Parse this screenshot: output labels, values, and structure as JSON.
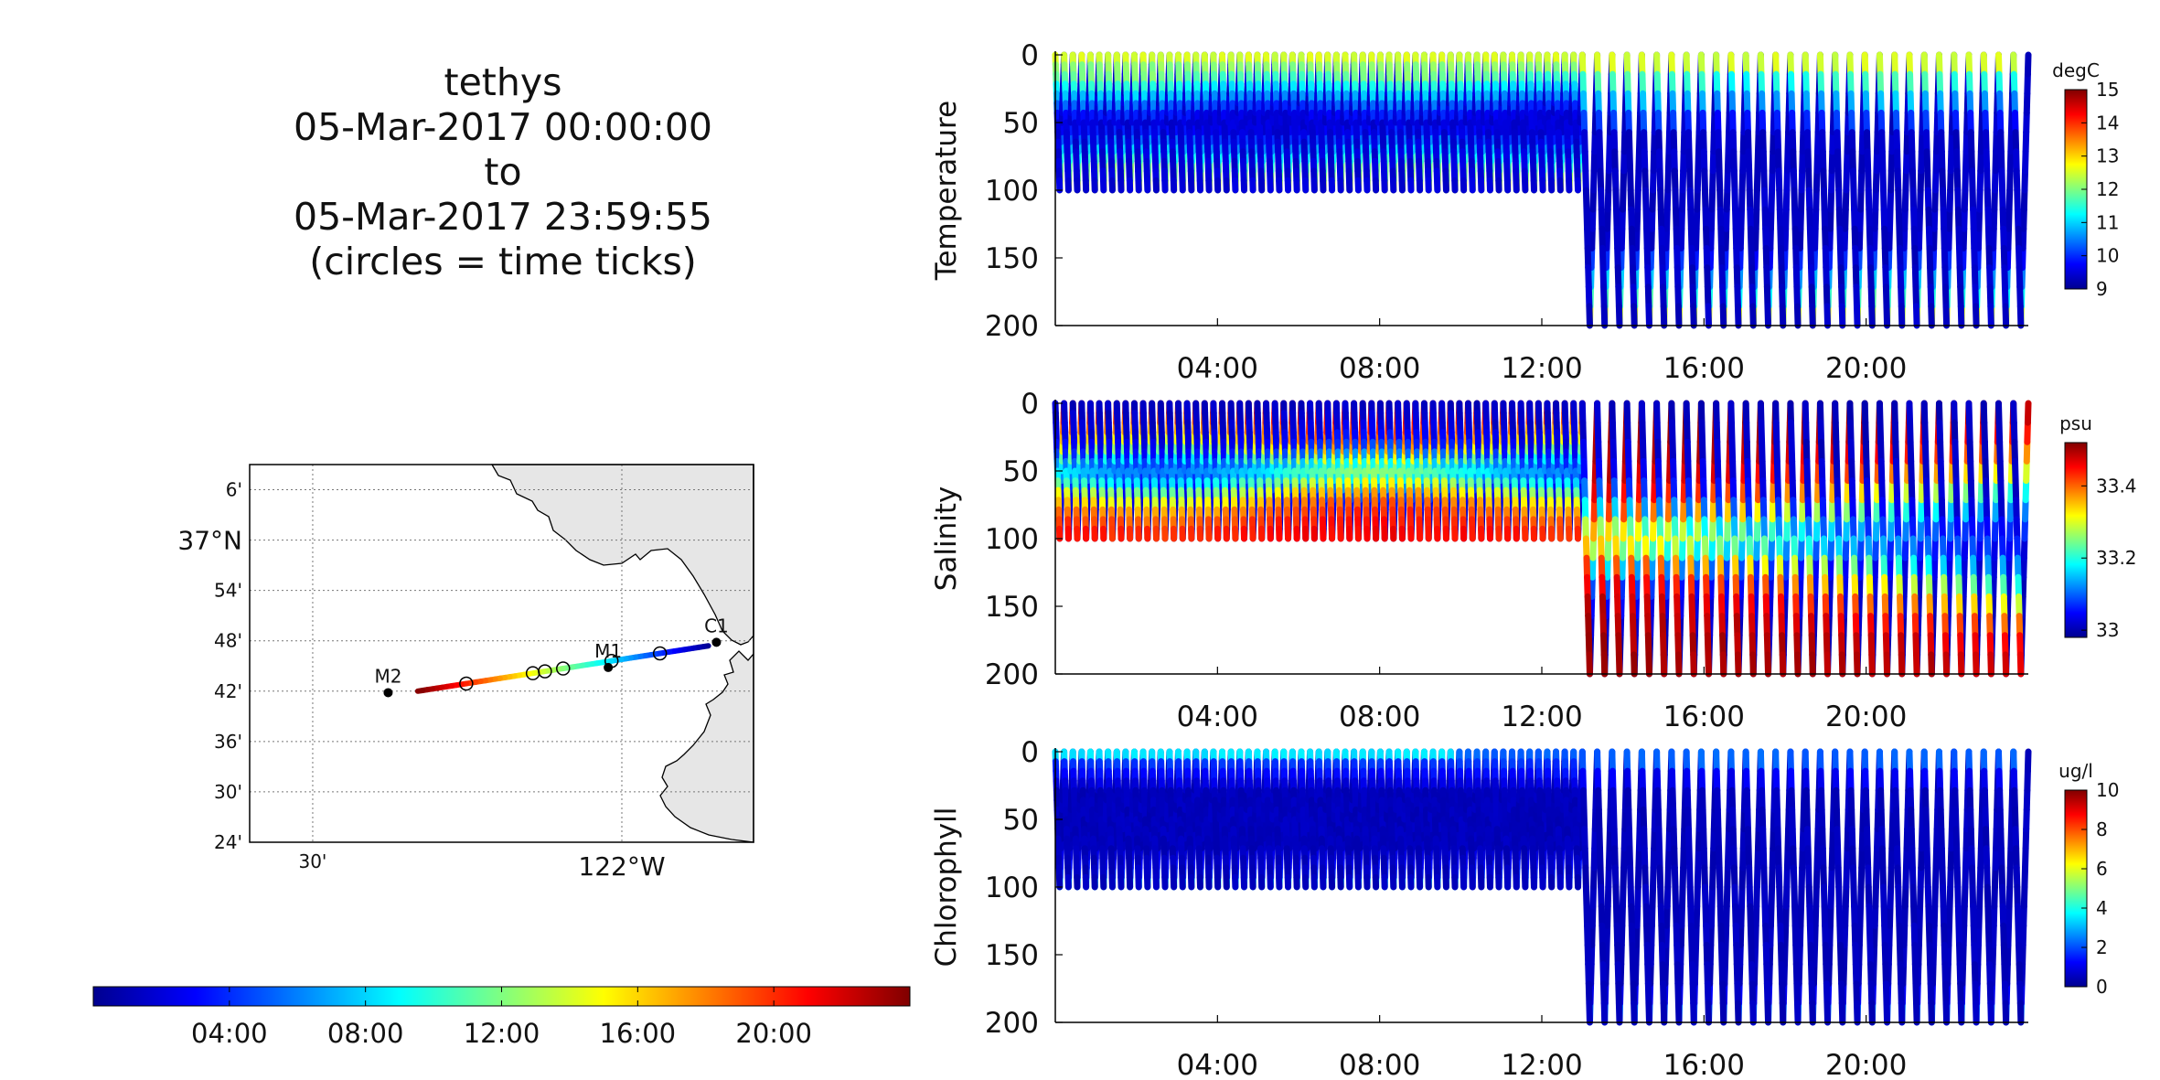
{
  "title": {
    "lines": [
      "tethys",
      "05-Mar-2017 00:00:00",
      "to",
      "05-Mar-2017 23:59:55",
      "(circles = time ticks)"
    ]
  },
  "colors": {
    "jet": [
      "#00008f",
      "#0000ff",
      "#0080ff",
      "#00ffff",
      "#80ff80",
      "#ffff00",
      "#ff8000",
      "#ff0000",
      "#800000"
    ],
    "land": "#e6e6e6",
    "axis": "#000000"
  },
  "chart_data": [
    {
      "type": "map",
      "lon_labels": [
        "30'",
        "122°W"
      ],
      "lat_labels": [
        "6'",
        "37°N",
        "54'",
        "48'",
        "42'",
        "36'",
        "30'",
        "24'"
      ],
      "stations": [
        {
          "name": "C1",
          "lon": -121.847,
          "lat": 36.797
        },
        {
          "name": "M1",
          "lon": -122.022,
          "lat": 36.747
        },
        {
          "name": "M2",
          "lon": -122.378,
          "lat": 36.697
        }
      ],
      "track": {
        "start": {
          "lon": -121.86,
          "lat": 36.79
        },
        "end": {
          "lon": -122.33,
          "lat": 36.7
        }
      },
      "time_tick_circles_hours": [
        4,
        8,
        12,
        13.5,
        14.5,
        20
      ],
      "grid": true
    },
    {
      "type": "colorbar",
      "orientation": "horizontal",
      "ticks": [
        "04:00",
        "08:00",
        "12:00",
        "16:00",
        "20:00"
      ],
      "range_hours": [
        0,
        24
      ]
    },
    {
      "type": "scatter",
      "ylabel": "Temperature",
      "units": "degC",
      "colorbar_ticks": [
        "9",
        "10",
        "11",
        "12",
        "13",
        "14",
        "15"
      ],
      "clim": [
        9,
        15
      ],
      "ylim": [
        200,
        0
      ],
      "yticks": [
        "0",
        "50",
        "100",
        "150",
        "200"
      ],
      "xticks": [
        "04:00",
        "08:00",
        "12:00",
        "16:00",
        "20:00"
      ],
      "profiles": [
        {
          "hours": [
            0,
            13
          ],
          "max_depth": 100,
          "period_min": 13
        },
        {
          "hours": [
            13,
            24
          ],
          "max_depth": 200,
          "period_min": 22
        }
      ],
      "surface_value": 12.7,
      "deep_value": 9.3
    },
    {
      "type": "scatter",
      "ylabel": "Salinity",
      "units": "psu",
      "colorbar_ticks": [
        "33",
        "33.2",
        "33.4"
      ],
      "clim": [
        32.98,
        33.52
      ],
      "ylim": [
        200,
        0
      ],
      "yticks": [
        "0",
        "50",
        "100",
        "150",
        "200"
      ],
      "xticks": [
        "04:00",
        "08:00",
        "12:00",
        "16:00",
        "20:00"
      ],
      "profiles": [
        {
          "hours": [
            0,
            13
          ],
          "max_depth": 100,
          "period_min": 13
        },
        {
          "hours": [
            13,
            24
          ],
          "max_depth": 200,
          "period_min": 22
        }
      ],
      "surface_value": 33.0,
      "deep_value": 33.5
    },
    {
      "type": "scatter",
      "ylabel": "Chlorophyll",
      "units": "ug/l",
      "colorbar_ticks": [
        "0",
        "2",
        "4",
        "6",
        "8",
        "10"
      ],
      "clim": [
        0,
        10
      ],
      "ylim": [
        200,
        0
      ],
      "yticks": [
        "0",
        "50",
        "100",
        "150",
        "200"
      ],
      "xticks": [
        "04:00",
        "08:00",
        "12:00",
        "16:00",
        "20:00"
      ],
      "profiles": [
        {
          "hours": [
            0,
            13
          ],
          "max_depth": 100,
          "period_min": 13
        },
        {
          "hours": [
            13,
            24
          ],
          "max_depth": 200,
          "period_min": 22
        }
      ],
      "surface_value": 2.5,
      "deep_value": 0.3
    }
  ]
}
